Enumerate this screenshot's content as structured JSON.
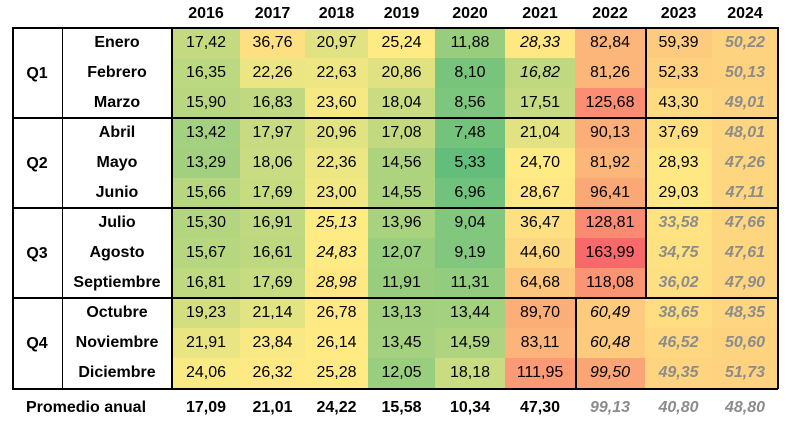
{
  "chart_data": {
    "type": "heatmap",
    "years": [
      "2016",
      "2017",
      "2018",
      "2019",
      "2020",
      "2021",
      "2022",
      "2023",
      "2024"
    ],
    "quarters": [
      {
        "label": "Q1",
        "months": [
          "Enero",
          "Febrero",
          "Marzo"
        ]
      },
      {
        "label": "Q2",
        "months": [
          "Abril",
          "Mayo",
          "Junio"
        ]
      },
      {
        "label": "Q3",
        "months": [
          "Julio",
          "Agosto",
          "Septiembre"
        ]
      },
      {
        "label": "Q4",
        "months": [
          "Octubre",
          "Noviembre",
          "Diciembre"
        ]
      }
    ],
    "values": [
      [
        "17,42",
        "36,76",
        "20,97",
        "25,24",
        "11,88",
        "28,33",
        "82,84",
        "59,39",
        "50,22"
      ],
      [
        "16,35",
        "22,26",
        "22,63",
        "20,86",
        "8,10",
        "16,82",
        "81,26",
        "52,33",
        "50,13"
      ],
      [
        "15,90",
        "16,83",
        "23,60",
        "18,04",
        "8,56",
        "17,51",
        "125,68",
        "43,30",
        "49,01"
      ],
      [
        "13,42",
        "17,97",
        "20,96",
        "17,08",
        "7,48",
        "21,04",
        "90,13",
        "37,69",
        "48,01"
      ],
      [
        "13,29",
        "18,06",
        "22,36",
        "14,56",
        "5,33",
        "24,70",
        "81,92",
        "28,93",
        "47,26"
      ],
      [
        "15,66",
        "17,69",
        "23,00",
        "14,55",
        "6,96",
        "28,67",
        "96,41",
        "29,03",
        "47,11"
      ],
      [
        "15,30",
        "16,91",
        "25,13",
        "13,96",
        "9,04",
        "36,47",
        "128,81",
        "33,58",
        "47,66"
      ],
      [
        "15,67",
        "16,61",
        "24,83",
        "12,07",
        "9,19",
        "44,60",
        "163,99",
        "34,75",
        "47,61"
      ],
      [
        "16,81",
        "17,69",
        "28,98",
        "11,91",
        "11,31",
        "64,68",
        "118,08",
        "36,02",
        "47,90"
      ],
      [
        "19,23",
        "21,14",
        "26,78",
        "13,13",
        "13,44",
        "89,70",
        "60,49",
        "38,65",
        "48,35"
      ],
      [
        "21,91",
        "23,84",
        "26,14",
        "13,45",
        "14,59",
        "83,11",
        "60,48",
        "46,52",
        "50,60"
      ],
      [
        "24,06",
        "26,32",
        "25,28",
        "12,05",
        "18,18",
        "111,95",
        "99,50",
        "49,35",
        "51,73"
      ]
    ],
    "cell_styles": [
      [
        "n",
        "n",
        "n",
        "n",
        "n",
        "i",
        "n",
        "n",
        "gb"
      ],
      [
        "n",
        "n",
        "n",
        "n",
        "n",
        "i",
        "n",
        "n",
        "gb"
      ],
      [
        "n",
        "n",
        "n",
        "n",
        "n",
        "n",
        "n",
        "n",
        "gb"
      ],
      [
        "n",
        "n",
        "n",
        "n",
        "n",
        "n",
        "n",
        "n",
        "gb"
      ],
      [
        "n",
        "n",
        "n",
        "n",
        "n",
        "n",
        "n",
        "n",
        "gb"
      ],
      [
        "n",
        "n",
        "n",
        "n",
        "n",
        "n",
        "n",
        "n",
        "gb"
      ],
      [
        "n",
        "n",
        "i",
        "n",
        "n",
        "n",
        "n",
        "gb",
        "gb"
      ],
      [
        "n",
        "n",
        "i",
        "n",
        "n",
        "n",
        "n",
        "gb",
        "gb"
      ],
      [
        "n",
        "n",
        "i",
        "n",
        "n",
        "n",
        "n",
        "gb",
        "gb"
      ],
      [
        "n",
        "n",
        "n",
        "n",
        "n",
        "n",
        "i",
        "gb",
        "gb"
      ],
      [
        "n",
        "n",
        "n",
        "n",
        "n",
        "n",
        "i",
        "gb",
        "gb"
      ],
      [
        "n",
        "n",
        "n",
        "n",
        "n",
        "n",
        "i",
        "gb",
        "gb"
      ]
    ],
    "annual_average_label": "Promedio anual",
    "annual_averages": [
      "17,09",
      "21,01",
      "24,22",
      "15,58",
      "10,34",
      "47,30",
      "99,13",
      "40,80",
      "48,80"
    ],
    "annual_average_styles": [
      "n",
      "n",
      "n",
      "n",
      "n",
      "n",
      "g",
      "g",
      "g"
    ],
    "color_scale": {
      "low": "#63be7b",
      "mid": "#ffeb84",
      "high": "#f8696b"
    },
    "grid": false
  }
}
